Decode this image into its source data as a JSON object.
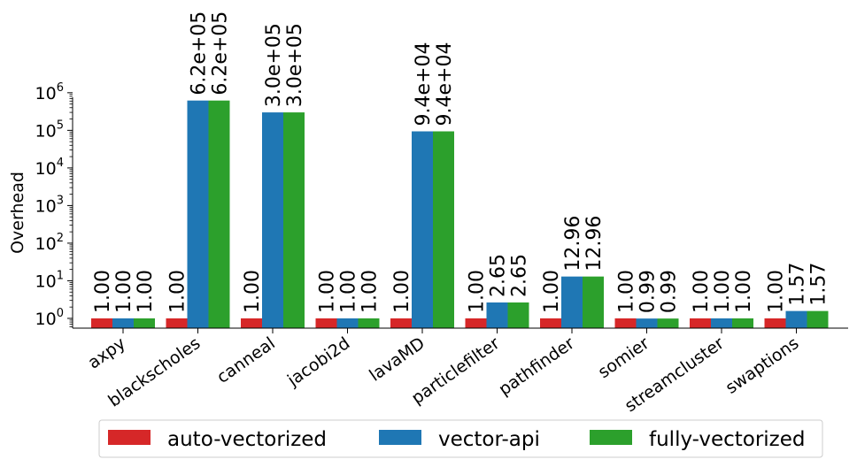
{
  "chart_data": {
    "type": "bar",
    "ylabel": "Overhead",
    "yscale": "log",
    "ylim": [
      0.55,
      1300000
    ],
    "yticks": [
      {
        "value": 1,
        "base": "10",
        "exp": "0"
      },
      {
        "value": 10,
        "base": "10",
        "exp": "1"
      },
      {
        "value": 100,
        "base": "10",
        "exp": "2"
      },
      {
        "value": 1000,
        "base": "10",
        "exp": "3"
      },
      {
        "value": 10000,
        "base": "10",
        "exp": "4"
      },
      {
        "value": 100000,
        "base": "10",
        "exp": "5"
      },
      {
        "value": 1000000,
        "base": "10",
        "exp": "6"
      }
    ],
    "categories": [
      "axpy",
      "blackscholes",
      "canneal",
      "jacobi2d",
      "lavaMD",
      "particlefilter",
      "pathfinder",
      "somier",
      "streamcluster",
      "swaptions"
    ],
    "series": [
      {
        "name": "auto-vectorized",
        "color": "#d62728",
        "values": [
          1.0,
          1.0,
          1.0,
          1.0,
          1.0,
          1.0,
          1.0,
          1.0,
          1.0,
          1.0
        ],
        "labels": [
          "1.00",
          "1.00",
          "1.00",
          "1.00",
          "1.00",
          "1.00",
          "1.00",
          "1.00",
          "1.00",
          "1.00"
        ]
      },
      {
        "name": "vector-api",
        "color": "#1f77b4",
        "values": [
          1.0,
          620000,
          300000,
          1.0,
          94000,
          2.65,
          12.96,
          0.99,
          1.0,
          1.57
        ],
        "labels": [
          "1.00",
          "6.2e+05",
          "3.0e+05",
          "1.00",
          "9.4e+04",
          "2.65",
          "12.96",
          "0.99",
          "1.00",
          "1.57"
        ]
      },
      {
        "name": "fully-vectorized",
        "color": "#2ca02c",
        "values": [
          1.0,
          620000,
          300000,
          1.0,
          94000,
          2.65,
          12.96,
          0.99,
          1.0,
          1.57
        ],
        "labels": [
          "1.00",
          "6.2e+05",
          "3.0e+05",
          "1.00",
          "9.4e+04",
          "2.65",
          "12.96",
          "0.99",
          "1.00",
          "1.57"
        ]
      }
    ],
    "legend": "bottom-center",
    "grid": false
  }
}
